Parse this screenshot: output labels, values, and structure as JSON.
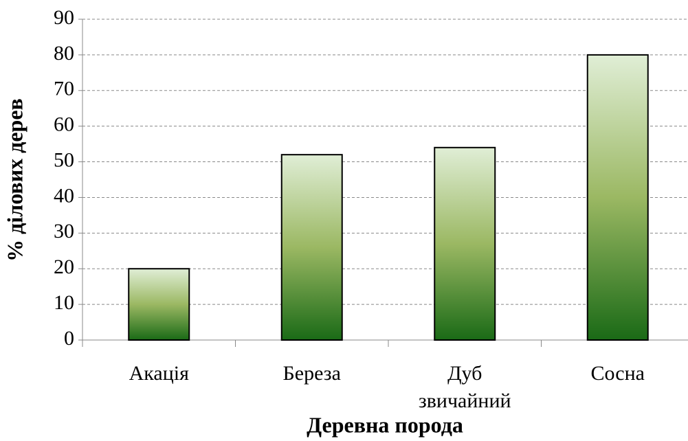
{
  "chart_data": {
    "type": "bar",
    "categories": [
      "Акація",
      "Береза",
      "Дуб звичайний",
      "Сосна"
    ],
    "values": [
      20,
      52,
      54,
      80
    ],
    "ylim": [
      0,
      90
    ],
    "yticks": [
      0,
      10,
      20,
      30,
      40,
      50,
      60,
      70,
      80,
      90
    ],
    "y_label": "% ділових дерев",
    "x_label": "Деревна порода",
    "grid": true,
    "color": [
      "#e0eed6",
      "#9bb863",
      "#1a6a16"
    ]
  }
}
